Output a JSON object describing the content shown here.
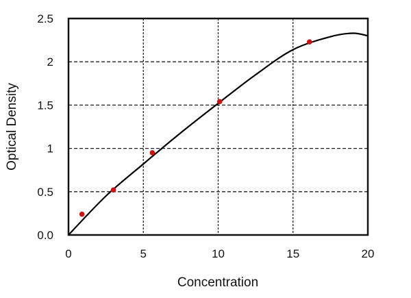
{
  "chart_data": {
    "type": "scatter",
    "title": "",
    "xlabel": "Concentration",
    "ylabel": "Optical Density",
    "xlim": [
      0,
      20
    ],
    "ylim": [
      0,
      2.5
    ],
    "grid": true,
    "legend": "none",
    "x_ticks": [
      {
        "value": 0,
        "label": "0"
      },
      {
        "value": 5,
        "label": "5"
      },
      {
        "value": 10,
        "label": "10"
      },
      {
        "value": 15,
        "label": "15"
      },
      {
        "value": 20,
        "label": "20"
      }
    ],
    "y_ticks": [
      {
        "value": 0,
        "label": "0.0"
      },
      {
        "value": 0.5,
        "label": "0.5"
      },
      {
        "value": 1,
        "label": "1"
      },
      {
        "value": 1.5,
        "label": "1.5"
      },
      {
        "value": 2,
        "label": "2"
      },
      {
        "value": 2.5,
        "label": "2.5"
      }
    ],
    "points": {
      "color": "#d01010",
      "x": [
        0.9,
        3.0,
        5.6,
        10.1,
        16.1
      ],
      "y": [
        0.24,
        0.52,
        0.95,
        1.54,
        2.23
      ]
    },
    "fit_curve": {
      "color": "#000000",
      "x": [
        0,
        2.5,
        5,
        7.5,
        10,
        12.5,
        15,
        17.5,
        19,
        20
      ],
      "y": [
        0,
        0.45,
        0.82,
        1.18,
        1.52,
        1.85,
        2.14,
        2.29,
        2.33,
        2.3
      ]
    }
  }
}
